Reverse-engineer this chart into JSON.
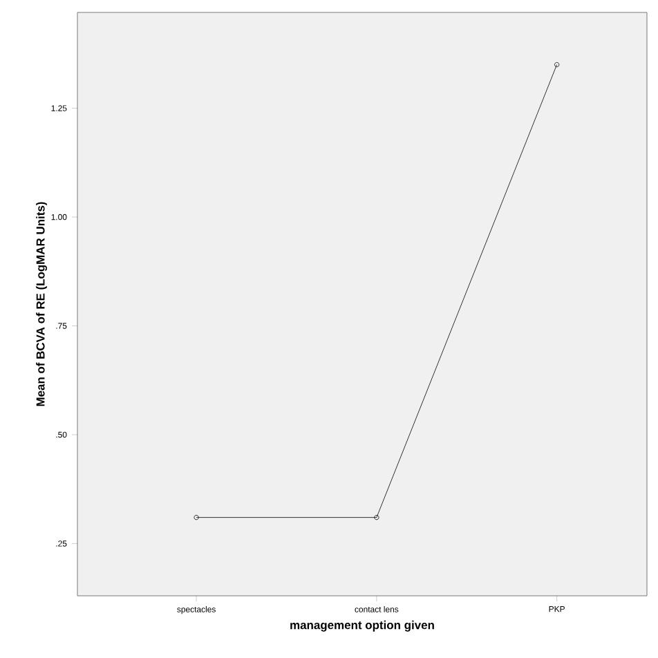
{
  "chart_data": {
    "type": "line",
    "xlabel": "management option given",
    "ylabel": "Mean of BCVA of RE (LogMAR Units)",
    "categories": [
      "spectacles",
      "contact lens",
      "PKP"
    ],
    "values": [
      0.31,
      0.31,
      1.35
    ],
    "color": "#000000",
    "marker": "circle",
    "line_style": "solid",
    "ylim": [
      0.13,
      1.47
    ],
    "yticks": [
      {
        "value": 0.25,
        "label": ".25"
      },
      {
        "value": 0.5,
        "label": ".50"
      },
      {
        "value": 0.75,
        "label": ".75"
      },
      {
        "value": 1.0,
        "label": "1.00"
      },
      {
        "value": 1.25,
        "label": "1.25"
      }
    ],
    "grid": false
  }
}
